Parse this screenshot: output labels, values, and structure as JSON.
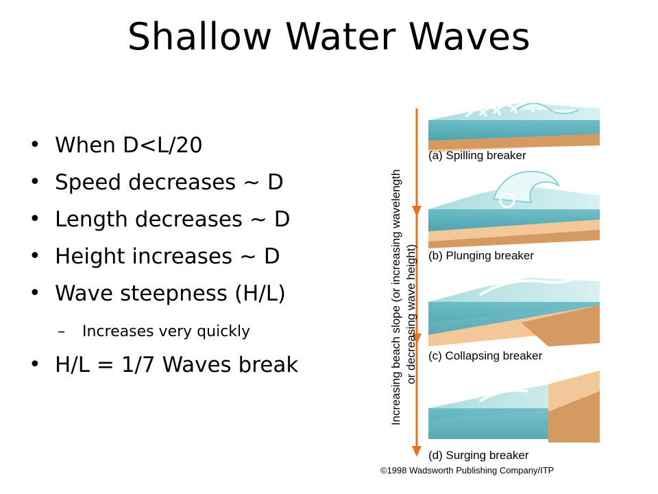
{
  "slide": {
    "title": "Shallow Water Waves",
    "bullets": [
      {
        "text": "When D<L/20",
        "level": 1,
        "marker": "•"
      },
      {
        "text": "Speed decreases ~ D",
        "level": 1,
        "marker": "•"
      },
      {
        "text": "Length decreases ~ D",
        "level": 1,
        "marker": "•"
      },
      {
        "text": "Height increases ~ D",
        "level": 1,
        "marker": "•"
      },
      {
        "text": "Wave steepness (H/L)",
        "level": 1,
        "marker": "•"
      },
      {
        "text": "Increases very quickly",
        "level": 2,
        "marker": "–"
      },
      {
        "text": "H/L = 1/7 Waves break",
        "level": 1,
        "marker": "•"
      }
    ]
  },
  "figure": {
    "side_label_line1": "Increasing beach slope (or increasing wavelength",
    "side_label_line2": "or decreasing wave height)",
    "panels": [
      {
        "label": "(a) Spilling breaker"
      },
      {
        "label": "(b) Plunging breaker"
      },
      {
        "label": "(c) Collapsing breaker"
      },
      {
        "label": "(d) Surging breaker"
      }
    ],
    "copyright": "©1998 Wadsworth Publishing Company/ITP",
    "colors": {
      "water_top": "#bfe5e6",
      "water_side": "#4ba7b2",
      "sand_top": "#f2c79a",
      "sand_side": "#d59a62",
      "arrow": "#e7731e"
    }
  }
}
